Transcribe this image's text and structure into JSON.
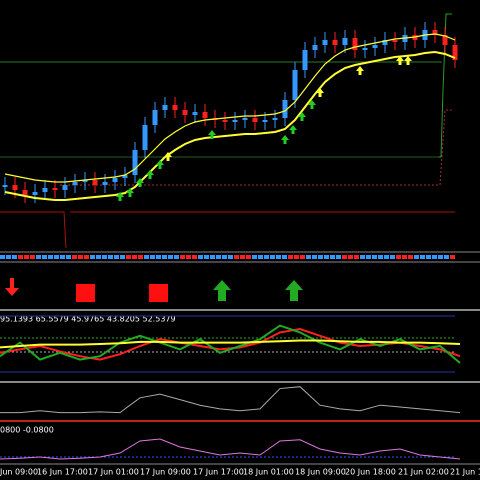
{
  "chart_data": {
    "type": "candlestick",
    "ylim": [
      0,
      250
    ],
    "series": [
      {
        "color": "#3399ff",
        "down_color": "#ff2020",
        "values": [
          65,
          60,
          55,
          58,
          62,
          60,
          65,
          68,
          70,
          65,
          68,
          72,
          75,
          100,
          125,
          140,
          145,
          140,
          135,
          138,
          132,
          130,
          128,
          130,
          132,
          128,
          130,
          132,
          150,
          180,
          200,
          205,
          210,
          205,
          212,
          200,
          202,
          205,
          210,
          208,
          215,
          210,
          220,
          215,
          205,
          190
        ]
      },
      {
        "color": "#ffff33",
        "values": [
          70,
          68,
          66,
          64,
          63,
          62,
          62,
          63,
          64,
          65,
          66,
          67,
          69,
          75,
          85,
          95,
          105,
          112,
          118,
          122,
          124,
          125,
          126,
          127,
          128,
          128,
          129,
          130,
          133,
          142,
          155,
          168,
          180,
          188,
          194,
          197,
          199,
          201,
          203,
          205,
          206,
          207,
          209,
          210,
          208,
          204
        ]
      }
    ],
    "oscillator": {
      "label": "95.1393 65.5579 45.9765 43.8205 52.5379",
      "ylim": [
        0,
        100
      ],
      "series": [
        {
          "color": "#ff2020",
          "values": [
            40,
            45,
            50,
            42,
            35,
            30,
            38,
            50,
            60,
            55,
            50,
            45,
            48,
            55,
            70,
            75,
            65,
            55,
            50,
            52,
            55,
            50,
            45,
            35
          ]
        },
        {
          "color": "#22aa22",
          "values": [
            35,
            55,
            30,
            40,
            30,
            35,
            55,
            65,
            55,
            45,
            60,
            40,
            50,
            60,
            80,
            70,
            55,
            45,
            60,
            50,
            60,
            45,
            50,
            25
          ]
        },
        {
          "color": "#ffff33",
          "values": [
            48,
            50,
            52,
            52,
            52,
            53,
            54,
            56,
            56,
            55,
            55,
            55,
            55,
            56,
            57,
            58,
            58,
            57,
            56,
            56,
            55,
            55,
            54,
            53
          ]
        }
      ]
    },
    "volatility": {
      "ylim": [
        0,
        100
      ],
      "color": "#aaaaaa",
      "values": [
        20,
        20,
        25,
        20,
        20,
        22,
        20,
        60,
        70,
        55,
        40,
        30,
        25,
        30,
        85,
        90,
        40,
        30,
        25,
        40,
        35,
        30,
        25,
        20
      ]
    },
    "momentum": {
      "label": "0800 -0.0800",
      "ylim": [
        0,
        100
      ],
      "color": "#dd77dd",
      "values": [
        10,
        12,
        15,
        10,
        12,
        15,
        25,
        55,
        60,
        40,
        30,
        20,
        25,
        20,
        55,
        58,
        35,
        25,
        20,
        30,
        35,
        20,
        15,
        10
      ]
    },
    "time_labels": [
      "Jun 09:00",
      "16 Jun 17:00",
      "17 Jun 01:00",
      "17 Jun 09:00",
      "17 Jun 17:00",
      "18 Jun 01:00",
      "18 Jun 09:00",
      "20 Jun 18:00",
      "21 Jun 02:00",
      "21 Jun 1"
    ]
  }
}
